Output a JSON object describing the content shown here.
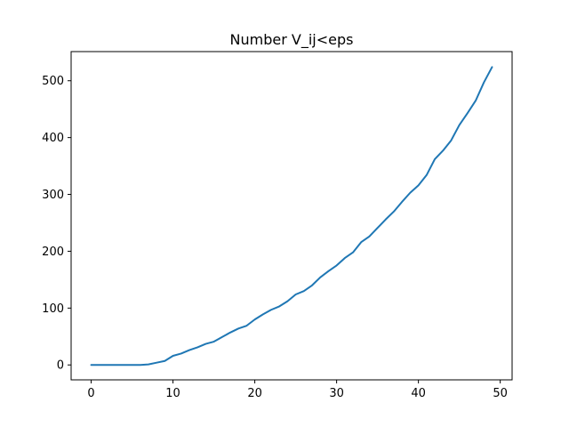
{
  "chart_data": {
    "type": "line",
    "title": "Number V_ij<eps",
    "xlabel": "",
    "ylabel": "",
    "xlim": [
      -2.45,
      51.45
    ],
    "ylim": [
      -26.25,
      551.25
    ],
    "x_ticks": [
      0,
      10,
      20,
      30,
      40,
      50
    ],
    "y_ticks": [
      0,
      100,
      200,
      300,
      400,
      500
    ],
    "grid": false,
    "legend": "none",
    "series_color": "#1f77b4",
    "series": [
      {
        "x": [
          0,
          1,
          2,
          3,
          4,
          5,
          6,
          7,
          8,
          9,
          10,
          11,
          12,
          13,
          14,
          15,
          16,
          17,
          18,
          19,
          20,
          21,
          22,
          23,
          24,
          25,
          26,
          27,
          28,
          29,
          30,
          31,
          32,
          33,
          34,
          35,
          36,
          37,
          38,
          39,
          40,
          41,
          42,
          43,
          44,
          45,
          46,
          47,
          48,
          49
        ],
        "values": [
          0,
          0,
          0,
          0,
          0,
          0,
          0,
          1,
          4,
          7,
          16,
          20,
          26,
          31,
          37,
          41,
          49,
          57,
          64,
          69,
          80,
          89,
          97,
          103,
          112,
          124,
          130,
          140,
          154,
          165,
          175,
          188,
          198,
          216,
          226,
          241,
          256,
          270,
          287,
          303,
          316,
          334,
          362,
          377,
          395,
          422,
          443,
          465,
          497,
          524
        ]
      }
    ]
  }
}
